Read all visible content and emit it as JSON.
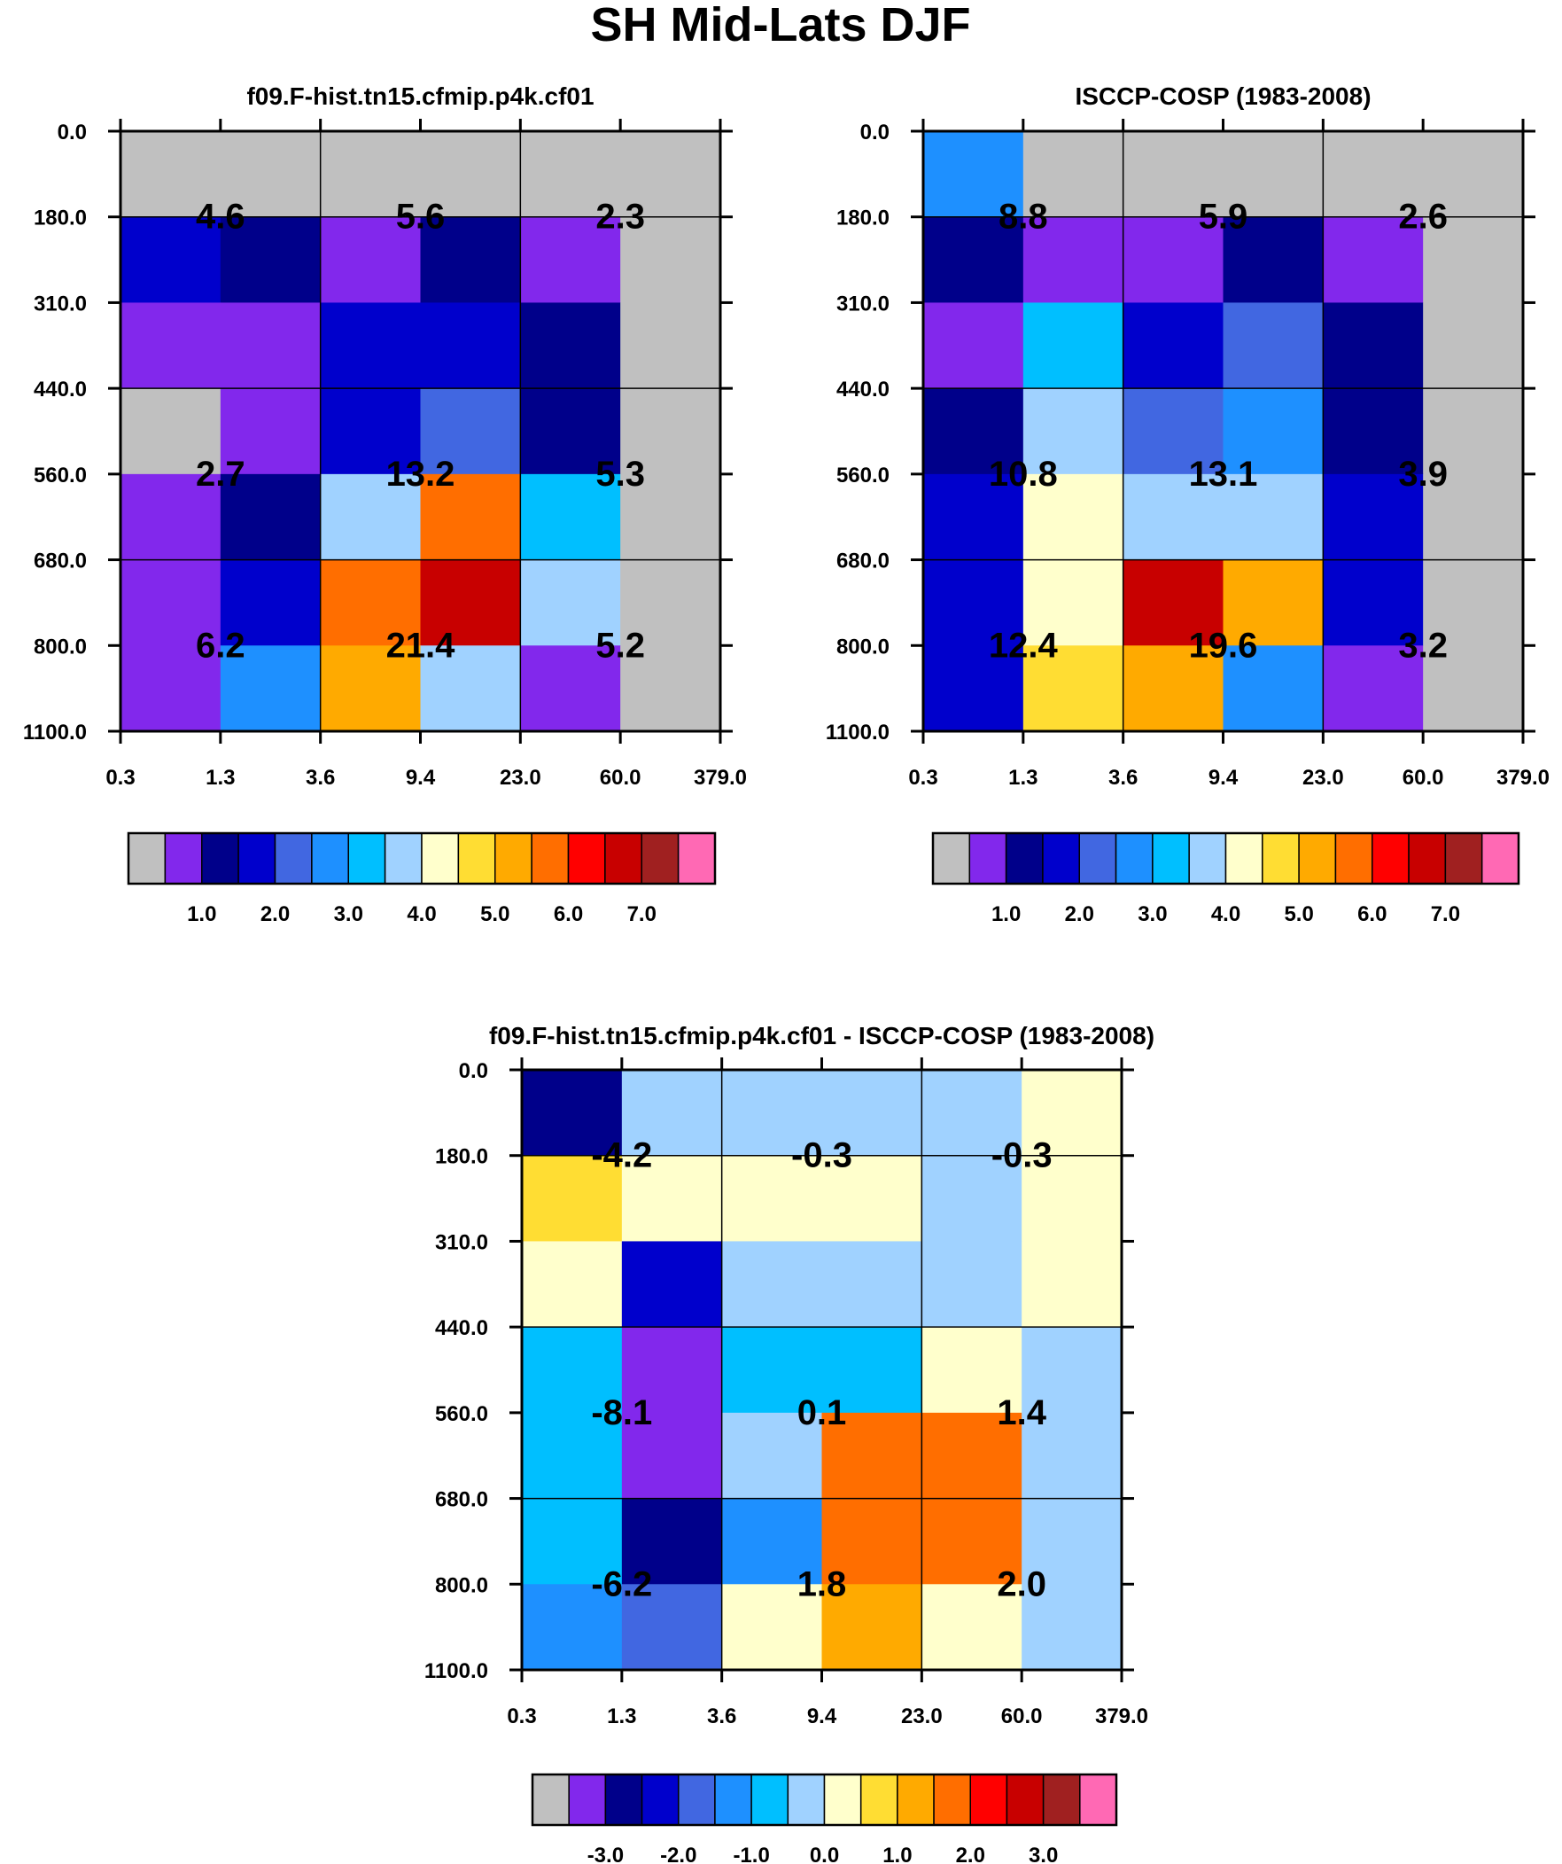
{
  "page": {
    "title": "SH Mid-Lats DJF"
  },
  "palettes": {
    "main": [
      "#c0c0c0",
      "#8228ec",
      "#00008a",
      "#0000cc",
      "#4167e1",
      "#1e90ff",
      "#00bfff",
      "#a0d2ff",
      "#ffffcc",
      "#ffdd33",
      "#ffaa00",
      "#ff6e00",
      "#ff0000",
      "#c80000",
      "#a02020",
      "#ff69b4"
    ]
  },
  "chart_data": [
    {
      "id": "model",
      "type": "heatmap",
      "title": "f09.F-hist.tn15.cfmip.p4k.cf01",
      "x_ticks": [
        "0.3",
        "1.3",
        "3.6",
        "9.4",
        "23.0",
        "60.0",
        "379.0"
      ],
      "y_ticks": [
        "0.0",
        "180.0",
        "310.0",
        "440.0",
        "560.0",
        "680.0",
        "800.0",
        "1100.0"
      ],
      "cell_colors": [
        [
          0,
          0,
          0,
          0,
          0,
          0
        ],
        [
          3,
          2,
          1,
          2,
          1,
          0
        ],
        [
          1,
          1,
          3,
          3,
          2,
          0
        ],
        [
          0,
          1,
          3,
          4,
          2,
          0
        ],
        [
          1,
          2,
          7,
          11,
          6,
          0
        ],
        [
          1,
          3,
          11,
          13,
          7,
          0
        ],
        [
          1,
          5,
          10,
          7,
          1,
          0
        ]
      ],
      "block_labels": [
        [
          "4.6",
          "5.6",
          "2.3"
        ],
        [
          "2.7",
          "13.2",
          "5.3"
        ],
        [
          "6.2",
          "21.4",
          "5.2"
        ]
      ],
      "colorbar_labels": [
        "1.0",
        "2.0",
        "3.0",
        "4.0",
        "5.0",
        "6.0",
        "7.0"
      ]
    },
    {
      "id": "obs",
      "type": "heatmap",
      "title": "ISCCP-COSP (1983-2008)",
      "x_ticks": [
        "0.3",
        "1.3",
        "3.6",
        "9.4",
        "23.0",
        "60.0",
        "379.0"
      ],
      "y_ticks": [
        "0.0",
        "180.0",
        "310.0",
        "440.0",
        "560.0",
        "680.0",
        "800.0",
        "1100.0"
      ],
      "cell_colors": [
        [
          5,
          0,
          0,
          0,
          0,
          0
        ],
        [
          2,
          1,
          1,
          2,
          1,
          0
        ],
        [
          1,
          6,
          3,
          4,
          2,
          0
        ],
        [
          2,
          7,
          4,
          5,
          2,
          0
        ],
        [
          3,
          8,
          7,
          7,
          3,
          0
        ],
        [
          3,
          8,
          13,
          10,
          3,
          0
        ],
        [
          3,
          9,
          10,
          5,
          1,
          0
        ]
      ],
      "block_labels": [
        [
          "8.8",
          "5.9",
          "2.6"
        ],
        [
          "10.8",
          "13.1",
          "3.9"
        ],
        [
          "12.4",
          "19.6",
          "3.2"
        ]
      ],
      "colorbar_labels": [
        "1.0",
        "2.0",
        "3.0",
        "4.0",
        "5.0",
        "6.0",
        "7.0"
      ]
    },
    {
      "id": "diff",
      "type": "heatmap",
      "title": "f09.F-hist.tn15.cfmip.p4k.cf01 - ISCCP-COSP (1983-2008)",
      "x_ticks": [
        "0.3",
        "1.3",
        "3.6",
        "9.4",
        "23.0",
        "60.0",
        "379.0"
      ],
      "y_ticks": [
        "0.0",
        "180.0",
        "310.0",
        "440.0",
        "560.0",
        "680.0",
        "800.0",
        "1100.0"
      ],
      "cell_colors": [
        [
          2,
          7,
          7,
          7,
          7,
          8
        ],
        [
          9,
          8,
          8,
          8,
          7,
          8
        ],
        [
          8,
          3,
          7,
          7,
          7,
          8
        ],
        [
          6,
          1,
          6,
          6,
          8,
          7
        ],
        [
          6,
          1,
          7,
          11,
          11,
          7
        ],
        [
          6,
          2,
          5,
          11,
          11,
          7
        ],
        [
          5,
          4,
          8,
          10,
          8,
          7
        ]
      ],
      "block_labels": [
        [
          "-4.2",
          "-0.3",
          "-0.3"
        ],
        [
          "-8.1",
          "0.1",
          "1.4"
        ],
        [
          "-6.2",
          "1.8",
          "2.0"
        ]
      ],
      "colorbar_labels": [
        "-3.0",
        "-2.0",
        "-1.0",
        "0.0",
        "1.0",
        "2.0",
        "3.0"
      ]
    }
  ]
}
